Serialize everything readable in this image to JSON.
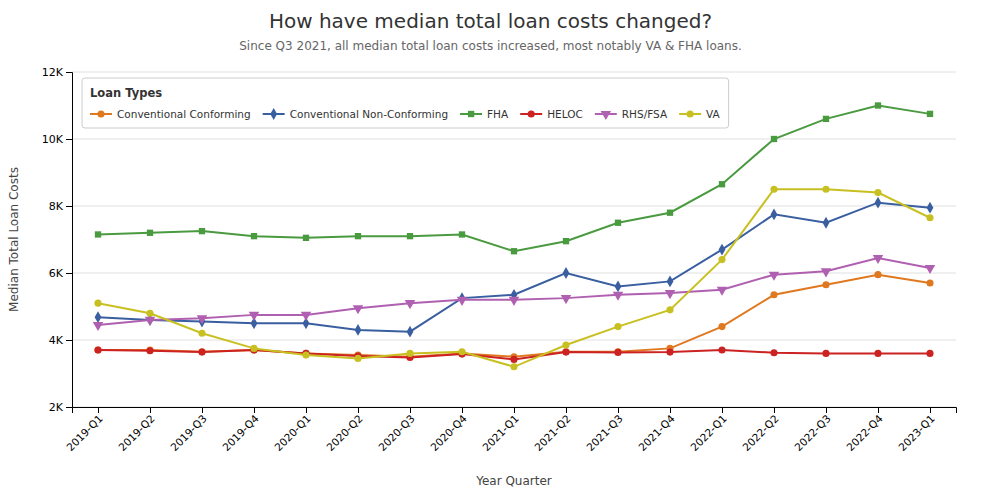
{
  "chart_data": {
    "type": "line",
    "title": "How have median total loan costs changed?",
    "subtitle": "Since Q3 2021, all median total loan costs increased, most notably VA & FHA loans.",
    "x_label": "Year Quarter",
    "y_label": "Median Total Loan Costs",
    "legend_title": "Loan Types",
    "categories": [
      "2019-Q1",
      "2019-Q2",
      "2019-Q3",
      "2019-Q4",
      "2020-Q1",
      "2020-Q2",
      "2020-Q3",
      "2020-Q4",
      "2021-Q1",
      "2021-Q2",
      "2021-Q3",
      "2021-Q4",
      "2022-Q1",
      "2022-Q2",
      "2022-Q3",
      "2022-Q4",
      "2023-Q1"
    ],
    "series": [
      {
        "name": "Conventional Conforming",
        "color": "#e07820",
        "marker": "circle",
        "values": [
          3700,
          3700,
          3650,
          3700,
          3600,
          3550,
          3500,
          3600,
          3500,
          3650,
          3650,
          3750,
          4400,
          5350,
          5650,
          5950,
          5700
        ]
      },
      {
        "name": "Conventional Non-Conforming",
        "color": "#3a5fa0",
        "marker": "diamond",
        "values": [
          4680,
          4600,
          4550,
          4500,
          4500,
          4300,
          4250,
          5250,
          5350,
          6000,
          5600,
          5750,
          6700,
          7750,
          7500,
          8100,
          7950
        ]
      },
      {
        "name": "FHA",
        "color": "#4a9a40",
        "marker": "square",
        "values": [
          7150,
          7200,
          7250,
          7100,
          7050,
          7100,
          7100,
          7150,
          6650,
          6950,
          7500,
          7800,
          8650,
          10000,
          10600,
          11000,
          10750
        ]
      },
      {
        "name": "HELOC",
        "color": "#cc2222",
        "marker": "circle",
        "values": [
          3700,
          3680,
          3640,
          3700,
          3600,
          3520,
          3480,
          3580,
          3420,
          3640,
          3630,
          3640,
          3700,
          3620,
          3600,
          3600,
          3600
        ]
      },
      {
        "name": "RHS/FSA",
        "color": "#b060b0",
        "marker": "triangle-down",
        "values": [
          4450,
          4600,
          4650,
          4750,
          4750,
          4950,
          5100,
          5200,
          5200,
          5250,
          5350,
          5400,
          5500,
          5950,
          6050,
          6450,
          6150
        ]
      },
      {
        "name": "VA",
        "color": "#c8c020",
        "marker": "circle",
        "values": [
          5100,
          4800,
          4200,
          3750,
          3550,
          3450,
          3600,
          3650,
          3200,
          3850,
          4400,
          4900,
          6400,
          8500,
          8500,
          8400,
          7650
        ]
      }
    ],
    "ylim": [
      2000,
      12000
    ],
    "yticks": [
      {
        "value": 2000,
        "label": "2K"
      },
      {
        "value": 4000,
        "label": "4K"
      },
      {
        "value": 6000,
        "label": "6K"
      },
      {
        "value": 8000,
        "label": "8K"
      },
      {
        "value": 10000,
        "label": "10K"
      },
      {
        "value": 12000,
        "label": "12K"
      }
    ],
    "grid": true,
    "legend": "upper left"
  }
}
